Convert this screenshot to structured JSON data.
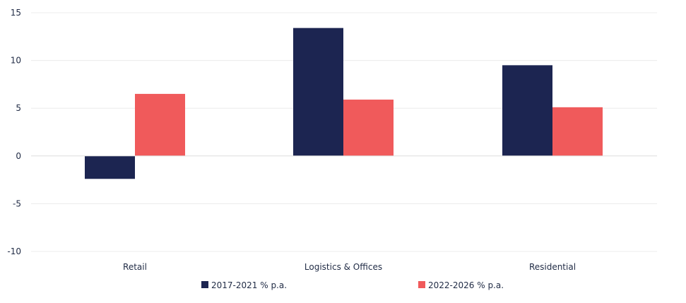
{
  "chart_data": {
    "type": "bar",
    "categories": [
      "Retail",
      "Logistics & Offices",
      "Residential"
    ],
    "series": [
      {
        "name": "2017-2021 % p.a.",
        "values": [
          -2.4,
          13.4,
          9.5
        ],
        "color": "#1c2551"
      },
      {
        "name": "2022-2026 % p.a.",
        "values": [
          6.5,
          5.9,
          5.1
        ],
        "color": "#f05a5b"
      }
    ],
    "yticks": [
      "15",
      "10",
      "5",
      "0",
      "-5",
      "-10"
    ],
    "ylim": [
      -10,
      15
    ],
    "grid": true,
    "legend_position": "bottom"
  }
}
